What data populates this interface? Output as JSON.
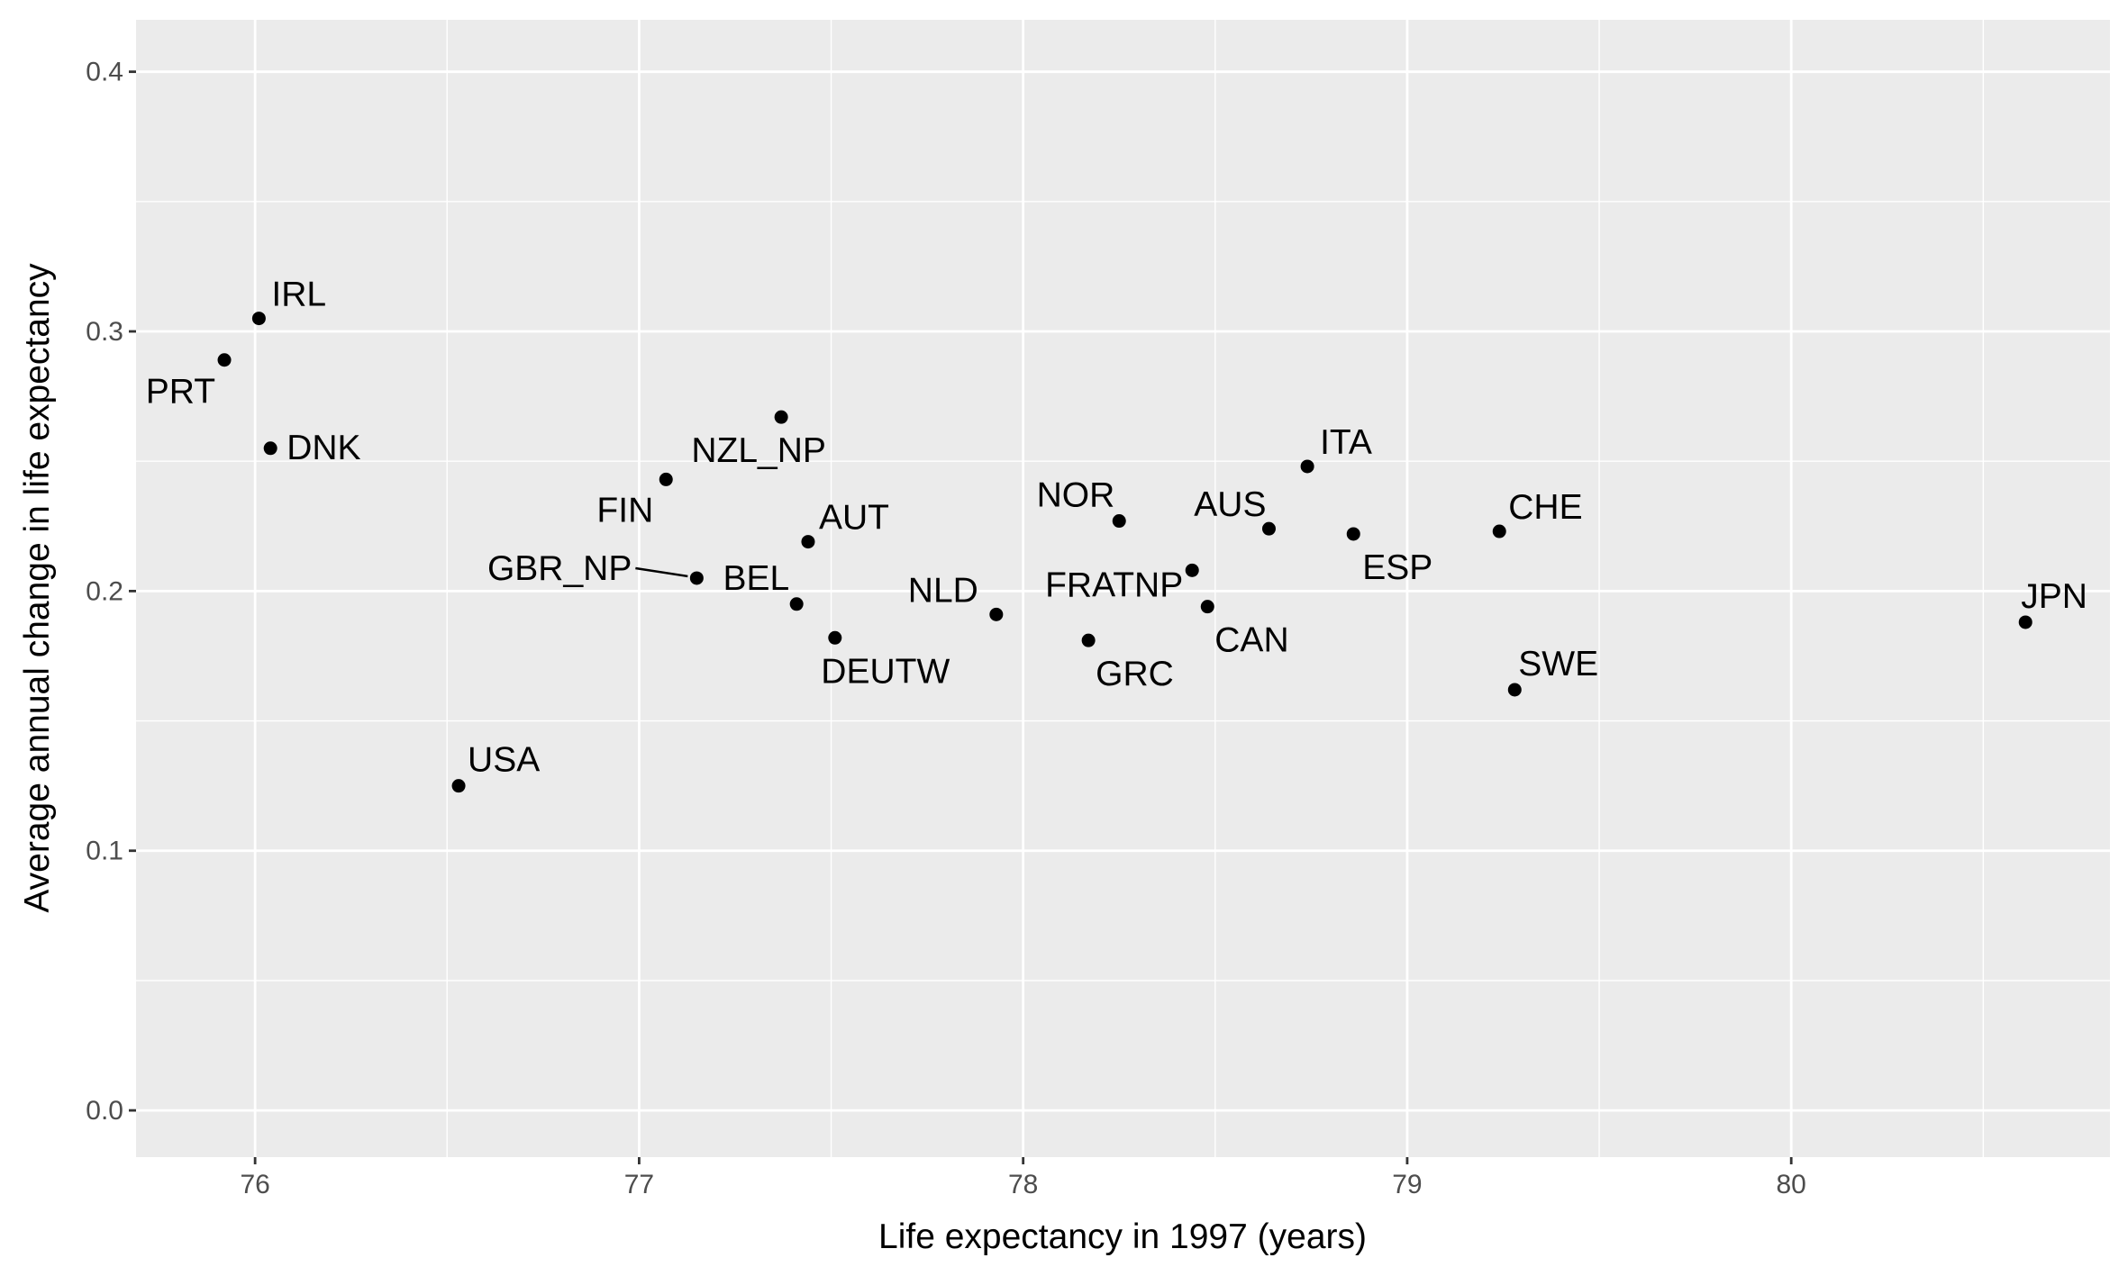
{
  "chart_data": {
    "type": "scatter",
    "title": "",
    "xlabel": "Life expectancy in 1997 (years)",
    "ylabel": "Average annual change in life expectancy",
    "xlim": [
      75.69,
      80.83
    ],
    "ylim": [
      -0.018,
      0.42
    ],
    "x_ticks": [
      76,
      77,
      78,
      79,
      80
    ],
    "y_ticks": [
      0.0,
      0.1,
      0.2,
      0.3,
      0.4
    ],
    "x_tick_labels": [
      "76",
      "77",
      "78",
      "79",
      "80"
    ],
    "y_tick_labels": [
      "0.0",
      "0.1",
      "0.2",
      "0.3",
      "0.4"
    ],
    "grid": true,
    "legend": "none",
    "colors": {
      "panel_background": "#ebebeb",
      "grid_line": "#ffffff",
      "point": "#000000"
    },
    "points": [
      {
        "label": "IRL",
        "x": 76.01,
        "y": 0.305
      },
      {
        "label": "PRT",
        "x": 75.92,
        "y": 0.289
      },
      {
        "label": "DNK",
        "x": 76.04,
        "y": 0.255
      },
      {
        "label": "NZL_NP",
        "x": 77.37,
        "y": 0.267
      },
      {
        "label": "FIN",
        "x": 77.07,
        "y": 0.243
      },
      {
        "label": "AUT",
        "x": 77.44,
        "y": 0.219
      },
      {
        "label": "GBR_NP",
        "x": 77.15,
        "y": 0.205
      },
      {
        "label": "BEL",
        "x": 77.41,
        "y": 0.195
      },
      {
        "label": "DEUTW",
        "x": 77.51,
        "y": 0.182
      },
      {
        "label": "USA",
        "x": 76.53,
        "y": 0.125
      },
      {
        "label": "NLD",
        "x": 77.93,
        "y": 0.191
      },
      {
        "label": "NOR",
        "x": 78.25,
        "y": 0.227
      },
      {
        "label": "FRATNP",
        "x": 78.44,
        "y": 0.208
      },
      {
        "label": "GRC",
        "x": 78.17,
        "y": 0.181
      },
      {
        "label": "AUS",
        "x": 78.64,
        "y": 0.224
      },
      {
        "label": "CAN",
        "x": 78.48,
        "y": 0.194
      },
      {
        "label": "ITA",
        "x": 78.74,
        "y": 0.248
      },
      {
        "label": "ESP",
        "x": 78.86,
        "y": 0.222
      },
      {
        "label": "CHE",
        "x": 79.24,
        "y": 0.223
      },
      {
        "label": "SWE",
        "x": 79.28,
        "y": 0.162
      },
      {
        "label": "JPN",
        "x": 80.61,
        "y": 0.188
      }
    ]
  }
}
